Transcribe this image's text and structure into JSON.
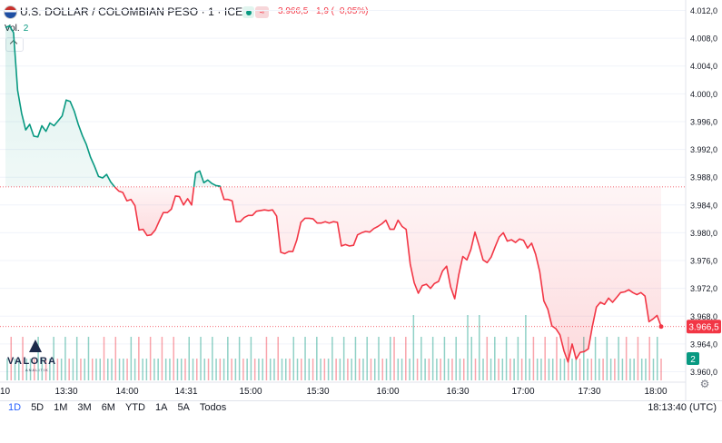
{
  "header": {
    "title": "U.S. DOLLAR / COLOMBIAN PESO · 1 · ICE",
    "delay_badge": "≈",
    "quote": "3.966,5 −1,9 (−0,05%)"
  },
  "volume": {
    "label": "Vol.",
    "value": "2"
  },
  "logo": {
    "name": "VALORA",
    "sub": "ANALITIK"
  },
  "ranges": [
    "1D",
    "5D",
    "1M",
    "3M",
    "6M",
    "YTD",
    "1A",
    "5A",
    "Todos"
  ],
  "active_range": "1D",
  "clock": "18:13:40 (UTC)",
  "price_badge": "3.966,5",
  "volume_badge": "2",
  "colors": {
    "up": "#089981",
    "down": "#f23645",
    "accent": "#2962ff"
  },
  "chart_data": {
    "type": "line",
    "x_ticks": [
      "10",
      "13:30",
      "14:00",
      "14:31",
      "15:00",
      "15:30",
      "16:00",
      "16:30",
      "17:00",
      "17:30",
      "18:00"
    ],
    "y_ticks": [
      "4.012,0",
      "4.008,0",
      "4.004,0",
      "4.000,0",
      "3.996,0",
      "3.992,0",
      "3.988,0",
      "3.984,0",
      "3.980,0",
      "3.976,0",
      "3.972,0",
      "3.968,0",
      "3.964,0",
      "3.960,0"
    ],
    "ylim": [
      3958.5,
      4013.5
    ],
    "reference_price": 3986.6,
    "last_price": 3966.5,
    "series": [
      {
        "values": [
          4009.5,
          4009.8,
          4008.8,
          4000.5,
          3997.2,
          3994.8,
          3995.6,
          3993.9,
          3993.8,
          3995.4,
          3994.6,
          3995.8,
          3995.4,
          3996.1,
          3996.8,
          3999.1,
          3998.9,
          3997.5,
          3995.6,
          3994.0,
          3992.7,
          3990.9,
          3989.6,
          3988.1,
          3987.9,
          3988.4,
          3987.3,
          3986.6,
          3986.0,
          3985.8,
          3984.6,
          3984.8,
          3983.9,
          3980.4,
          3980.5,
          3979.6,
          3979.7,
          3980.4,
          3981.7,
          3982.9,
          3982.9,
          3983.4,
          3985.3,
          3985.2,
          3984.0,
          3984.9,
          3984.0,
          3988.6,
          3988.9,
          3987.2,
          3987.6,
          3987.1,
          3986.8,
          3986.7,
          3984.8,
          3984.8,
          3984.6,
          3981.6,
          3981.6,
          3982.2,
          3982.5,
          3982.5,
          3983.1,
          3983.2,
          3983.3,
          3983.2,
          3983.3,
          3982.4,
          3977.2,
          3977.0,
          3977.3,
          3977.3,
          3979.0,
          3981.5,
          3982.1,
          3982.1,
          3982.0,
          3981.4,
          3981.4,
          3981.6,
          3981.4,
          3981.6,
          3981.5,
          3978.1,
          3978.3,
          3978.1,
          3978.2,
          3979.7,
          3980.0,
          3980.2,
          3980.1,
          3980.6,
          3980.9,
          3981.3,
          3981.8,
          3980.5,
          3980.5,
          3981.8,
          3980.9,
          3980.5,
          3975.5,
          3972.8,
          3971.3,
          3972.4,
          3972.6,
          3972.0,
          3972.7,
          3973.0,
          3974.5,
          3975.2,
          3972.2,
          3970.5,
          3974.0,
          3976.6,
          3976.1,
          3977.6,
          3980.1,
          3978.2,
          3976.1,
          3975.7,
          3976.5,
          3978.0,
          3979.4,
          3980.0,
          3978.8,
          3979.0,
          3978.6,
          3979.1,
          3978.9,
          3977.8,
          3978.5,
          3976.9,
          3974.4,
          3970.2,
          3969.0,
          3966.6,
          3966.2,
          3965.3,
          3963.0,
          3961.4,
          3964.0,
          3961.8,
          3962.8,
          3962.9,
          3963.3,
          3966.5,
          3969.3,
          3970.0,
          3969.7,
          3970.6,
          3970.0,
          3970.7,
          3971.4,
          3971.5,
          3971.8,
          3971.4,
          3971.1,
          3971.4,
          3970.9,
          3967.2,
          3967.6,
          3968.1,
          3966.5
        ]
      }
    ],
    "volume_bars": [
      1,
      2,
      1,
      1,
      2,
      1,
      1,
      1,
      2,
      1,
      1,
      1,
      2,
      1,
      1,
      2,
      1,
      1,
      2,
      1,
      1,
      2,
      1,
      1,
      1,
      2,
      1,
      1,
      2,
      1,
      1,
      1,
      2,
      1,
      2,
      1,
      1,
      2,
      1,
      1,
      2,
      1,
      1,
      2,
      1,
      1,
      1,
      2,
      1,
      1,
      2,
      1,
      1,
      2,
      1,
      1,
      1,
      2,
      1,
      1,
      2,
      1,
      1,
      2,
      1,
      1,
      1,
      2,
      1,
      1,
      2,
      1,
      1,
      1,
      2,
      1,
      1,
      2,
      1,
      1,
      2,
      1,
      1,
      1,
      2,
      1,
      1,
      2,
      1,
      1,
      2,
      1,
      1,
      2,
      1,
      1,
      2,
      1,
      1,
      2,
      2,
      1,
      1,
      2,
      1,
      3,
      1,
      2,
      1,
      1,
      2,
      1,
      1,
      2,
      1,
      1,
      2,
      1,
      1,
      3,
      2,
      1,
      3,
      1,
      2,
      1,
      2,
      1,
      1,
      2,
      1,
      1,
      2,
      1,
      3,
      1,
      2,
      1,
      1,
      2,
      1,
      1,
      2,
      1,
      1,
      2,
      1,
      1,
      1,
      2,
      1,
      1,
      2,
      1,
      1,
      2,
      1,
      1,
      2,
      1,
      2,
      1,
      1,
      2,
      1,
      1,
      2,
      1,
      2,
      1
    ]
  }
}
